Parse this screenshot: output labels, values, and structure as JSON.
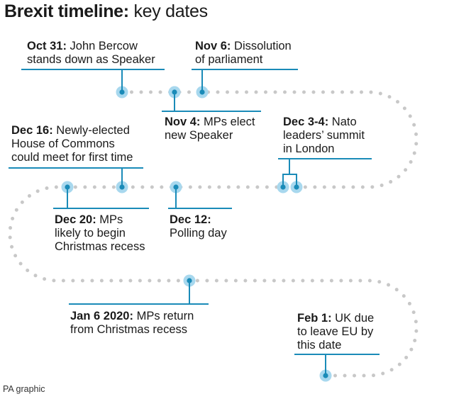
{
  "title": {
    "bold": "Brexit timeline:",
    "rest": " key dates"
  },
  "events": [
    {
      "id": "oct31",
      "date": "Oct 31:",
      "lines": [
        " John Bercow",
        "stands down as Speaker"
      ]
    },
    {
      "id": "nov6",
      "date": "Nov 6:",
      "lines": [
        " Dissolution",
        "of parliament"
      ]
    },
    {
      "id": "nov4",
      "date": "Nov 4:",
      "lines": [
        " MPs elect",
        "new Speaker"
      ]
    },
    {
      "id": "dec3",
      "date": "Dec 3-4:",
      "lines": [
        " Nato",
        "leaders’ summit",
        "in London"
      ]
    },
    {
      "id": "dec16",
      "date": "Dec 16:",
      "lines": [
        " Newly-elected",
        "House of Commons",
        "could meet for first time"
      ]
    },
    {
      "id": "dec20",
      "date": "Dec 20:",
      "lines": [
        " MPs",
        "likely to begin",
        "Christmas recess"
      ]
    },
    {
      "id": "dec12",
      "date": "Dec 12:",
      "lines": [
        "",
        "Polling day"
      ]
    },
    {
      "id": "jan6",
      "date": "Jan 6 2020:",
      "lines": [
        " MPs return",
        "from Christmas recess"
      ]
    },
    {
      "id": "feb1",
      "date": "Feb 1:",
      "lines": [
        " UK due",
        "to leave EU by",
        "this date"
      ]
    }
  ],
  "credit": "PA graphic",
  "colors": {
    "accent": "#1a8bb8",
    "dot": "#c8c8c8",
    "marker_halo": "#a8d8ee"
  }
}
